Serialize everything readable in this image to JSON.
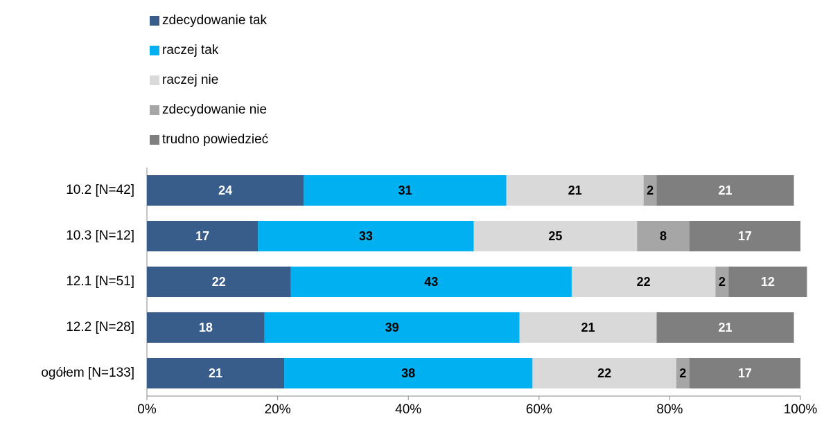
{
  "chart_data": {
    "type": "stacked_barh",
    "categories": [
      "10.2 [N=42]",
      "10.3 [N=12]",
      "12.1 [N=51]",
      "12.2 [N=28]",
      "ogółem [N=133]"
    ],
    "series": [
      {
        "name": "zdecydowanie tak",
        "color": "#385d8a",
        "label_color": "#ffffff",
        "values": [
          24,
          17,
          22,
          18,
          21
        ]
      },
      {
        "name": "raczej tak",
        "color": "#00b0f0",
        "label_color": "#000000",
        "values": [
          31,
          33,
          43,
          39,
          38
        ]
      },
      {
        "name": "raczej nie",
        "color": "#d9d9d9",
        "label_color": "#000000",
        "values": [
          21,
          25,
          22,
          21,
          22
        ]
      },
      {
        "name": "zdecydowanie nie",
        "color": "#a6a6a6",
        "label_color": "#000000",
        "values": [
          2,
          8,
          2,
          null,
          2
        ]
      },
      {
        "name": "trudno powiedzieć",
        "color": "#7f7f7f",
        "label_color": "#ffffff",
        "values": [
          21,
          17,
          12,
          21,
          17
        ]
      }
    ],
    "xlim": [
      0,
      100
    ],
    "xticks": [
      {
        "value": 0,
        "label": "0%"
      },
      {
        "value": 20,
        "label": "20%"
      },
      {
        "value": 40,
        "label": "40%"
      },
      {
        "value": 60,
        "label": "60%"
      },
      {
        "value": 80,
        "label": "80%"
      },
      {
        "value": 100,
        "label": "100%"
      }
    ],
    "legend": "top-left"
  }
}
